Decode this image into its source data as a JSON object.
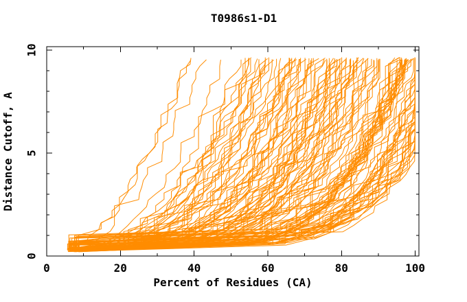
{
  "chart_data": {
    "type": "line",
    "title": "T0986s1-D1",
    "xlabel": "Percent of Residues (CA)",
    "ylabel": "Distance Cutoff, A",
    "xlim": [
      0,
      100
    ],
    "ylim": [
      0,
      10
    ],
    "x_ticks": {
      "major": [
        0,
        20,
        40,
        60,
        80,
        100
      ],
      "minor": [
        10,
        30,
        50,
        70,
        90
      ]
    },
    "y_ticks": {
      "major": [
        0,
        5,
        10
      ],
      "minor": [
        1,
        2,
        3,
        4,
        6,
        7,
        8,
        9
      ]
    },
    "x_tick_labels": [
      "0",
      "20",
      "40",
      "60",
      "80",
      "100"
    ],
    "y_tick_labels": [
      "0",
      "5",
      "10"
    ],
    "grid": false,
    "legend": "none",
    "series_color": "#ff8c00",
    "axis_color": "#000000",
    "background_color": "#ffffff",
    "description": "Dense family of overlapping monotone cumulative-accuracy curves (one per predicted model): percent of CA residues fit under each distance cutoff. All curves emanate from about (6%, 0.3 A); worst curves reach the 9.6 A top by ~33%, best curves stay below ~1.5 A until ~99% then rise vertically at the right edge.",
    "series_generation": {
      "note": "Curves are visually estimated; exact per-model values are not readable from the raster. Parameters below regenerate an equivalent bundle deterministically.",
      "count": 130,
      "seed": 11,
      "x_start": [
        5.5,
        8.5
      ],
      "y_start": [
        0.2,
        0.42
      ],
      "y_end": [
        9.5,
        9.65
      ],
      "x_end": [
        34,
        110
      ],
      "x_cap": 99.9,
      "shape_k": [
        1.1,
        6.2
      ],
      "quality_skew": 0.6,
      "segments": 30,
      "jitter": 1.3,
      "hold_probability": 0.25
    }
  }
}
